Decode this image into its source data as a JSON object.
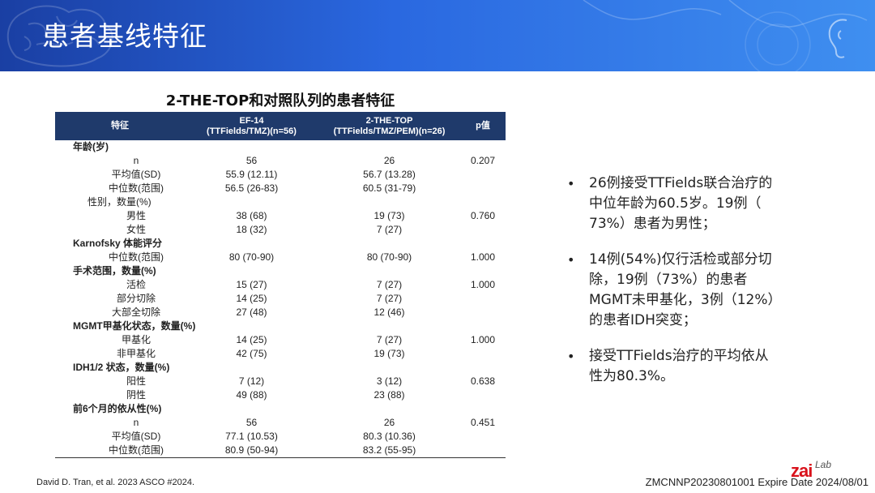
{
  "banner": {
    "title": "患者基线特征"
  },
  "table": {
    "title": "2-THE-TOP和对照队列的患者特征",
    "headers": {
      "feature": "特征",
      "ef14": "EF-14\n(TTFields/TMZ)(n=56)",
      "top": "2-THE-TOP\n(TTFields/TMZ/PEM)(n=26)",
      "p": "p值"
    },
    "rows": [
      {
        "label": "年龄(岁)",
        "ef14": "",
        "top": "",
        "p": "",
        "section": true
      },
      {
        "label": "n",
        "ef14": "56",
        "top": "26",
        "p": "0.207"
      },
      {
        "label": "平均值(SD)",
        "ef14": "55.9 (12.11)",
        "top": "56.7 (13.28)",
        "p": ""
      },
      {
        "label": "中位数(范围)",
        "ef14": "56.5 (26-83)",
        "top": "60.5 (31-79)",
        "p": ""
      },
      {
        "label": "性别，数量(%)",
        "ef14": "",
        "top": "",
        "p": "",
        "plain_header": true
      },
      {
        "label": "男性",
        "ef14": "38 (68)",
        "top": "19 (73)",
        "p": "0.760"
      },
      {
        "label": "女性",
        "ef14": "18 (32)",
        "top": "7 (27)",
        "p": ""
      },
      {
        "label": "Karnofsky 体能评分",
        "ef14": "",
        "top": "",
        "p": "",
        "section": true
      },
      {
        "label": "中位数(范围)",
        "ef14": "80 (70-90)",
        "top": "80 (70-90)",
        "p": "1.000"
      },
      {
        "label": "手术范围，数量(%)",
        "ef14": "",
        "top": "",
        "p": "",
        "section": true
      },
      {
        "label": "活检",
        "ef14": "15 (27)",
        "top": "7 (27)",
        "p": "1.000"
      },
      {
        "label": "部分切除",
        "ef14": "14 (25)",
        "top": "7 (27)",
        "p": ""
      },
      {
        "label": "大部全切除",
        "ef14": "27 (48)",
        "top": "12 (46)",
        "p": ""
      },
      {
        "label": "MGMT甲基化状态，数量(%)",
        "ef14": "",
        "top": "",
        "p": "",
        "section": true
      },
      {
        "label": "甲基化",
        "ef14": "14 (25)",
        "top": "7 (27)",
        "p": "1.000"
      },
      {
        "label": "非甲基化",
        "ef14": "42 (75)",
        "top": "19 (73)",
        "p": ""
      },
      {
        "label": "IDH1/2 状态，数量(%)",
        "ef14": "",
        "top": "",
        "p": "",
        "section": true
      },
      {
        "label": "阳性",
        "ef14": "7 (12)",
        "top": "3 (12)",
        "p": "0.638"
      },
      {
        "label": "阴性",
        "ef14": "49 (88)",
        "top": "23 (88)",
        "p": ""
      },
      {
        "label": "前6个月的依从性(%)",
        "ef14": "",
        "top": "",
        "p": "",
        "section": true
      },
      {
        "label": "n",
        "ef14": "56",
        "top": "26",
        "p": "0.451"
      },
      {
        "label": "平均值(SD)",
        "ef14": "77.1 (10.53)",
        "top": "80.3 (10.36)",
        "p": ""
      },
      {
        "label": "中位数(范围)",
        "ef14": "80.9 (50-94)",
        "top": "83.2 (55-95)",
        "p": ""
      }
    ]
  },
  "bullets": [
    {
      "lines": [
        "26例接受TTFields联合治疗的",
        "中位年龄为60.5岁。19例（",
        "73%）患者为男性；"
      ]
    },
    {
      "lines": [
        "14例(54%)仅行活检或部分切",
        "除，19例（73%）的患者",
        "MGMT未甲基化，3例（12%）",
        "的患者IDH突变；"
      ]
    },
    {
      "lines": [
        "接受TTFields治疗的平均依从",
        "性为80.3%。"
      ]
    }
  ],
  "bullet_symbol": "•",
  "footer": {
    "citation": "David D. Tran, et al. 2023 ASCO #2024.",
    "logo_main": "zai",
    "logo_sub": "Lab",
    "expire": "ZMCNNP20230801001 Expire Date 2024/08/01"
  },
  "colors": {
    "banner_start": "#1a3fa3",
    "banner_end": "#3f8ff0",
    "table_header": "#1f3a6b",
    "logo_red": "#d9121b"
  }
}
